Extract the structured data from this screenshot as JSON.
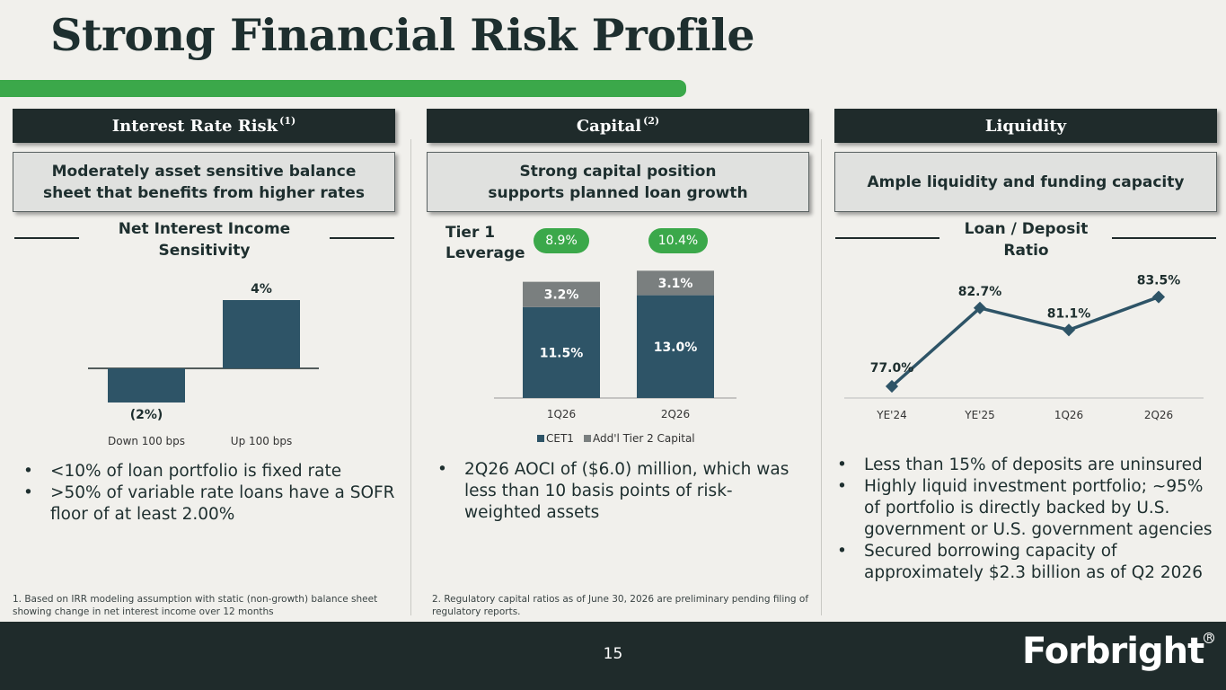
{
  "title": "Strong Financial Risk Profile",
  "colors": {
    "dark": "#1f2b2b",
    "green": "#3ba84a",
    "bar": "#2e5467",
    "gray_bar": "#7a7f7f"
  },
  "sections": {
    "interest": {
      "header": "Interest Rate Risk",
      "sup": "(1)",
      "sub": "Moderately asset sensitive balance sheet that benefits from higher rates",
      "chart_title": "Net Interest Income Sensitivity"
    },
    "capital": {
      "header": "Capital",
      "sup": "(2)",
      "sub": "Strong capital position supports planned loan growth",
      "tier_label": "Tier 1 Leverage"
    },
    "liquidity": {
      "header": "Liquidity",
      "sub": "Ample liquidity and funding capacity",
      "chart_title": "Loan / Deposit Ratio"
    }
  },
  "chart_data": [
    {
      "type": "bar",
      "title": "Net Interest Income Sensitivity",
      "categories": [
        "Down 100 bps",
        "Up 100 bps"
      ],
      "values": [
        -2,
        4
      ],
      "data_labels": [
        "(2%)",
        "4%"
      ]
    },
    {
      "type": "bar",
      "stacked": true,
      "categories": [
        "1Q26",
        "2Q26"
      ],
      "series": [
        {
          "name": "CET1",
          "values": [
            11.5,
            13.0
          ],
          "labels": [
            "11.5%",
            "13.0%"
          ]
        },
        {
          "name": "Add'l Tier 2 Capital",
          "values": [
            3.2,
            3.1
          ],
          "labels": [
            "3.2%",
            "3.1%"
          ]
        }
      ],
      "tier1_leverage": [
        "8.9%",
        "10.4%"
      ],
      "legend": "bottom"
    },
    {
      "type": "line",
      "title": "Loan / Deposit Ratio",
      "categories": [
        "YE'24",
        "YE'25",
        "1Q26",
        "2Q26"
      ],
      "values": [
        77.0,
        82.7,
        81.1,
        83.5
      ],
      "data_labels": [
        "77.0%",
        "82.7%",
        "81.1%",
        "83.5%"
      ]
    }
  ],
  "bullets": {
    "interest": [
      "<10% of loan portfolio is fixed rate",
      ">50% of variable rate loans have a SOFR floor of at least 2.00%"
    ],
    "capital": [
      "2Q26 AOCI of ($6.0) million, which was less than 10 basis points of risk-weighted assets"
    ],
    "liquidity": [
      "Less than 15% of deposits are uninsured",
      "Highly liquid investment portfolio; ~95% of portfolio is directly backed by U.S. government or U.S. government agencies",
      "Secured borrowing capacity of approximately $2.3 billion as of Q2 2026"
    ]
  },
  "footnotes": {
    "one": "1. Based on IRR modeling assumption with static (non-growth) balance sheet showing change in net interest income over 12 months",
    "two": "2. Regulatory capital ratios as of June 30, 2026 are preliminary pending filing of regulatory reports."
  },
  "page_number": "15",
  "logo": {
    "text": "Forbright",
    "mark": "R"
  }
}
